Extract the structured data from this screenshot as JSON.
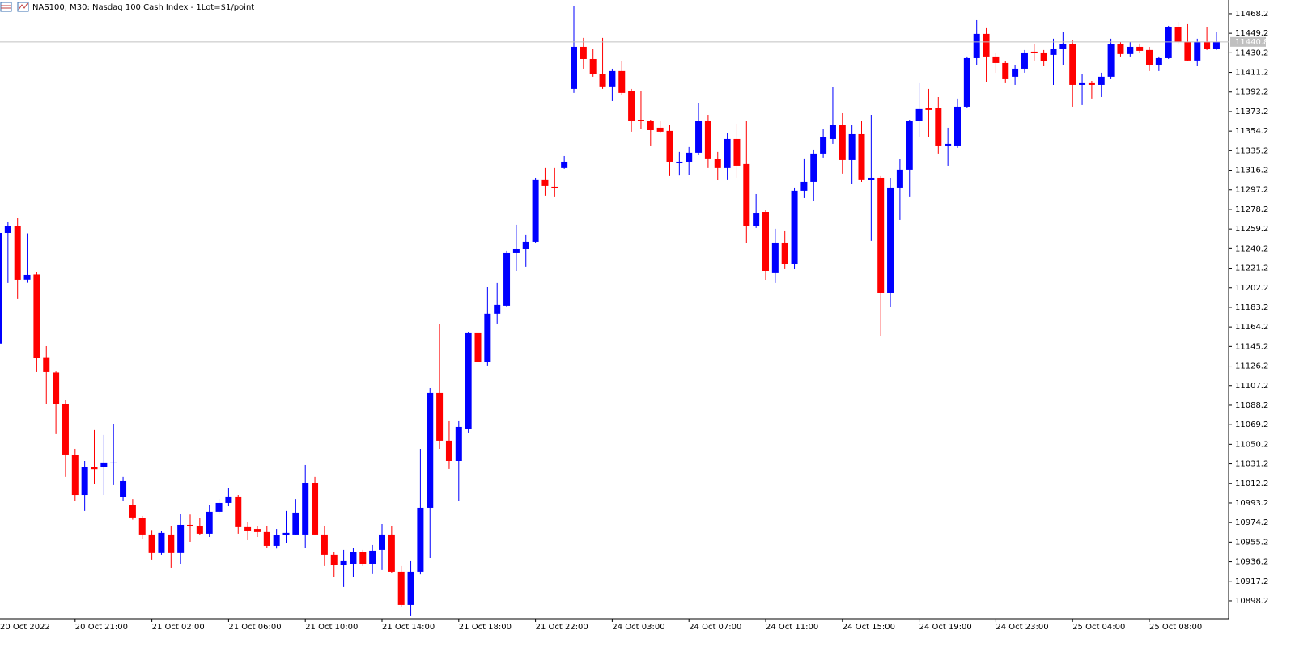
{
  "chart_data": {
    "type": "candlestick",
    "title": "NAS100, M30:  Nasdaq 100 Cash Index - 1Lot=$1/point",
    "categories": [
      "20 Oct 2022",
      null,
      null,
      null,
      null,
      null,
      null,
      null,
      "20 Oct 21:00",
      null,
      null,
      null,
      null,
      null,
      null,
      null,
      "21 Oct 02:00",
      null,
      null,
      null,
      null,
      null,
      null,
      null,
      "21 Oct 06:00",
      null,
      null,
      null,
      null,
      null,
      null,
      null,
      "21 Oct 10:00",
      null,
      null,
      null,
      null,
      null,
      null,
      null,
      "21 Oct 14:00",
      null,
      null,
      null,
      null,
      null,
      null,
      null,
      "21 Oct 18:00",
      null,
      null,
      null,
      null,
      null,
      null,
      null,
      "21 Oct 22:00",
      null,
      null,
      null,
      null,
      null,
      null,
      null,
      "24 Oct 03:00",
      null,
      null,
      null,
      null,
      null,
      null,
      null,
      "24 Oct 07:00",
      null,
      null,
      null,
      null,
      null,
      null,
      null,
      "24 Oct 11:00",
      null,
      null,
      null,
      null,
      null,
      null,
      null,
      "24 Oct 15:00",
      null,
      null,
      null,
      null,
      null,
      null,
      null,
      "24 Oct 19:00",
      null,
      null,
      null,
      null,
      null,
      null,
      null,
      "24 Oct 23:00",
      null,
      null,
      null,
      null,
      null,
      null,
      null,
      "25 Oct 04:00",
      null,
      null,
      null,
      null,
      null,
      null,
      null,
      "25 Oct 08:00",
      null,
      null,
      null,
      null,
      null,
      null,
      null
    ],
    "open": [
      11148,
      11255.4,
      11262,
      11210,
      11215,
      11134,
      11120,
      11089,
      11040,
      11001,
      11028,
      11028,
      11032,
      10998.7,
      10991.6,
      10979,
      10962.6,
      10944.6,
      10962.6,
      10944.6,
      10972,
      10971,
      10963.4,
      10984.6,
      10993.2,
      10999.5,
      10969.7,
      10968,
      10965,
      10951.6,
      10961.8,
      10962.6,
      10962.6,
      11012.8,
      10962.6,
      10943,
      10932.8,
      10934.3,
      10945.3,
      10934.3,
      10947.7,
      10962.6,
      10926.5,
      10894.3,
      10926.5,
      10988.5,
      11100,
      11053.7,
      11034,
      11065.4,
      11158.1,
      11129.8,
      11177,
      11184.8,
      11235.8,
      11239.7,
      11246.8,
      11307.3,
      11300.2,
      11318.3,
      11395.2,
      11436,
      11424.2,
      11409.3,
      11397.6,
      11412.5,
      11392.8,
      11365.3,
      11363.8,
      11357.5,
      11354.4,
      11322.9,
      11324.5,
      11333.2,
      11363.8,
      11326.9,
      11318.3,
      11346.5,
      11322.2,
      11261.7,
      11275.8,
      11217,
      11246,
      11224.8,
      11296.3,
      11304.9,
      11332.4,
      11346.5,
      11359.9,
      11326.1,
      11351.2,
      11306.5,
      11308.8,
      11197.3,
      11299.4,
      11316.7,
      11363.8,
      11376.4,
      11376.4,
      11340.2,
      11340.2,
      11377.9,
      11425,
      11448.6,
      11426.6,
      11420.3,
      11407,
      11414.8,
      11431.3,
      11430.5,
      11428.2,
      11434.4,
      11438.4,
      11399.1,
      11400.7,
      11399.1,
      11407,
      11438.4,
      11429,
      11436,
      11432.9,
      11418.7,
      11425,
      11455.6,
      11440.7,
      11422.7,
      11440.7,
      11434.4
    ],
    "high": [
      11256,
      11265.6,
      11269.6,
      11255,
      11217.7,
      11145.5,
      11121,
      11093,
      11045.8,
      11034,
      11063.9,
      11059.2,
      11070.1,
      11018.4,
      10997,
      10980.6,
      10967,
      10965.7,
      10971.2,
      10982.2,
      10982,
      10979,
      10991.6,
      10997,
      11007.3,
      11001,
      10974.4,
      10971,
      10971,
      10968,
      10985.4,
      10997,
      11030.1,
      11018.4,
      10971.2,
      10945.3,
      10947.7,
      10949.2,
      10947.7,
      10952.4,
      10972.8,
      10971.2,
      10932,
      10936.7,
      11045.8,
      11104.7,
      11167.5,
      11073.3,
      11073.3,
      11159.6,
      11195,
      11202.8,
      11206.8,
      11238.2,
      11263.3,
      11253.9,
      11308.8,
      11318.3,
      11318.3,
      11330,
      11476,
      11444.7,
      11434.4,
      11444.7,
      11414.8,
      11421.9,
      11395.2,
      11392.8,
      11365.3,
      11363.8,
      11359.9,
      11334,
      11338.7,
      11381.8,
      11370,
      11334,
      11352,
      11361.4,
      11363.8,
      11293.1,
      11277.4,
      11259.4,
      11257,
      11299.4,
      11327.7,
      11336.3,
      11355.9,
      11396.8,
      11371.6,
      11359.9,
      11363.8,
      11370,
      11310.4,
      11308.8,
      11326.9,
      11365.3,
      11400.7,
      11395.2,
      11387.3,
      11357.5,
      11385.8,
      11426.6,
      11461.9,
      11454.1,
      11429.7,
      11421.9,
      11418.7,
      11432.9,
      11438.4,
      11432.9,
      11443.9,
      11450.1,
      11442.3,
      11409.3,
      11403,
      11410.9,
      11443.9,
      11440.8,
      11440.8,
      11439.2,
      11436,
      11426.6,
      11456.4,
      11460.4,
      11458,
      11443.9,
      11455.6,
      11450.1
    ],
    "low": [
      11148,
      11206.8,
      11191.1,
      11207,
      11120.4,
      11089,
      11060,
      11018.4,
      10994.8,
      10985.4,
      11012,
      11001,
      11010.5,
      10994.8,
      10977,
      10957.9,
      10938.3,
      10943,
      10930.4,
      10934.3,
      10955.5,
      10961.8,
      10960.2,
      10982.2,
      10990,
      10963.4,
      10957.1,
      10960.2,
      10949.2,
      10949,
      10954,
      10961.8,
      10949.2,
      10961.8,
      10932,
      10921,
      10911.6,
      10921,
      10932,
      10924.2,
      10928.1,
      10925.7,
      10892.7,
      10883.3,
      10924,
      10939.8,
      11045.8,
      11026.2,
      10994.8,
      11061.5,
      11126.7,
      11126.7,
      11167.5,
      11183.2,
      11218.5,
      11222.5,
      11246,
      11291.6,
      11290.8,
      11317.5,
      11391.3,
      11414.8,
      11407,
      11395.2,
      11383.4,
      11388.9,
      11353.6,
      11355.9,
      11340.2,
      11352,
      11310.4,
      11311,
      11311.2,
      11330.8,
      11318.3,
      11306.5,
      11307.3,
      11308.8,
      11246,
      11260.2,
      11209.9,
      11206.8,
      11220.9,
      11220.1,
      11289.2,
      11286.8,
      11328.5,
      11341.8,
      11312.8,
      11302.6,
      11304.9,
      11247.6,
      11155.7,
      11183.2,
      11268,
      11290.8,
      11348.1,
      11348.1,
      11332.4,
      11320.6,
      11337.9,
      11376.4,
      11418.7,
      11401.5,
      11410.9,
      11400.7,
      11399.1,
      11410.9,
      11422.7,
      11417.2,
      11399.1,
      11418.7,
      11377.9,
      11379.5,
      11385.8,
      11387.3,
      11404.6,
      11426.6,
      11426.6,
      11429.7,
      11412.5,
      11412.5,
      11424.2,
      11438.4,
      11421.9,
      11417.2,
      11432.9,
      11432.9
    ],
    "close": [
      11255.4,
      11261.7,
      11209.9,
      11214.6,
      11133.7,
      11120.4,
      11089,
      11040.3,
      11001,
      11027.8,
      11026,
      11032.5,
      11032.5,
      11014.4,
      10979.1,
      10962.6,
      10944.6,
      10964.2,
      10944.6,
      10972,
      10970.5,
      10963.4,
      10984.6,
      10993.2,
      10999.5,
      10969.7,
      10966.5,
      10965,
      10951.6,
      10961.8,
      10964.2,
      10983.8,
      11012.8,
      10962.6,
      10943,
      10933.5,
      10936.7,
      10945.3,
      10934.3,
      10946.9,
      10962.6,
      10926.5,
      10894.3,
      10926.5,
      10988.5,
      11100,
      11053.7,
      11034,
      11067,
      11158.1,
      11129.8,
      11177,
      11185.6,
      11235.8,
      11239.7,
      11246.8,
      11307.3,
      11301,
      11298.6,
      11324.5,
      11436,
      11424.2,
      11409.3,
      11397.6,
      11412.5,
      11391.3,
      11363.8,
      11363.8,
      11355.1,
      11353.6,
      11324.5,
      11324.5,
      11333.2,
      11363.8,
      11327.7,
      11318.3,
      11346.5,
      11320.6,
      11261.7,
      11275,
      11218.5,
      11246,
      11224.8,
      11296.3,
      11304.9,
      11332.4,
      11348.1,
      11359.9,
      11326.1,
      11351.2,
      11307.3,
      11308.8,
      11197.3,
      11299.4,
      11316.7,
      11363.8,
      11375.6,
      11374.8,
      11340.2,
      11341.8,
      11377.9,
      11425,
      11448.6,
      11426.6,
      11420.3,
      11404.6,
      11414.8,
      11430.5,
      11429.7,
      11421.9,
      11434.4,
      11438.4,
      11399.1,
      11400.7,
      11399.1,
      11407,
      11438.4,
      11429,
      11436,
      11432.1,
      11418.7,
      11425,
      11455.6,
      11440.7,
      11422.7,
      11440.7,
      11434.4,
      11440.8
    ],
    "up_color": "#0000ff",
    "down_color": "#ff0000",
    "current_price": 11440.8,
    "ylim": [
      10880.9,
      11481.5
    ],
    "yticks": [
      10898.2,
      10917.2,
      10936.2,
      10955.2,
      10974.2,
      10993.2,
      11012.2,
      11031.2,
      11050.2,
      11069.2,
      11088.2,
      11107.2,
      11126.2,
      11145.2,
      11164.2,
      11183.2,
      11202.2,
      11221.2,
      11240.2,
      11259.2,
      11278.2,
      11297.2,
      11316.2,
      11335.2,
      11354.2,
      11373.2,
      11392.2,
      11411.2,
      11430.2,
      11449.2,
      11468.2
    ]
  }
}
